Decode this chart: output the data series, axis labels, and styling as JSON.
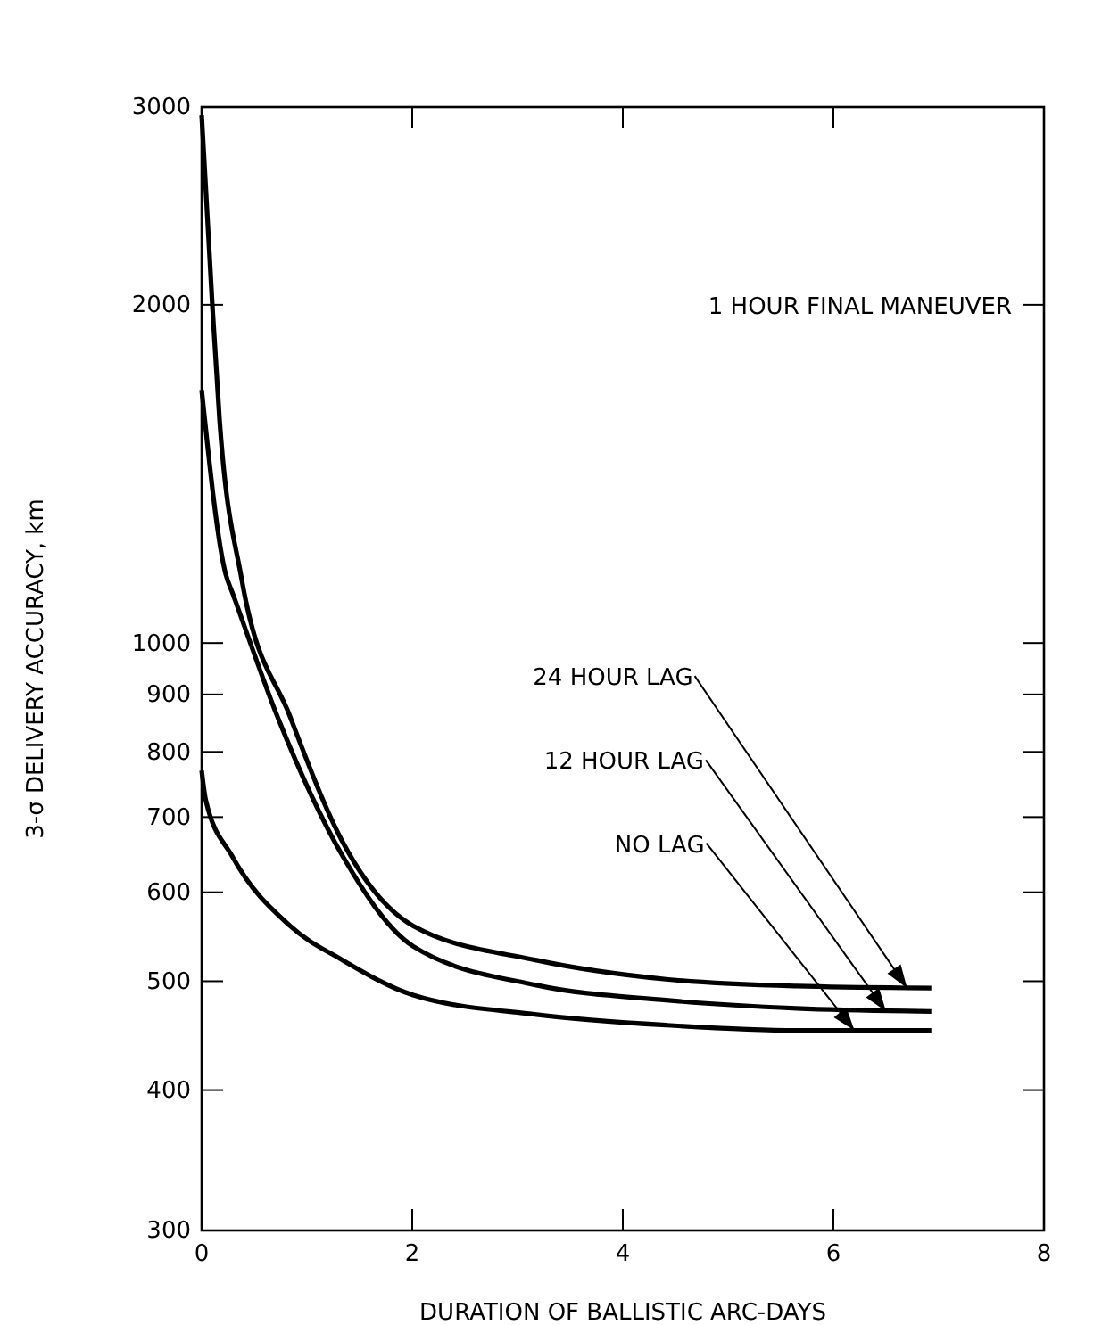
{
  "chart_data": {
    "type": "line",
    "xlabel": "DURATION OF BALLISTIC ARC-DAYS",
    "ylabel": "3-σ DELIVERY ACCURACY, km",
    "log": true,
    "xlim": [
      0,
      8
    ],
    "xticks": [
      0,
      2,
      4,
      6,
      8
    ],
    "ylim": [
      300,
      3000
    ],
    "yticks": [
      300,
      400,
      500,
      600,
      700,
      800,
      900,
      1000,
      2000,
      3000
    ],
    "line_style": "solid",
    "marker": "none",
    "series": [
      {
        "color": "#000000",
        "x": [
          0,
          0.1,
          0.17,
          0.38,
          0.84,
          1.34,
          2.01,
          3.18,
          4.41,
          5.65,
          6.93
        ],
        "values": [
          2950,
          2010,
          1580,
          1140,
          860,
          665,
          560,
          522,
          502,
          495,
          493
        ]
      },
      {
        "color": "#000000",
        "x": [
          0,
          0.23,
          0.29,
          0.72,
          1.34,
          2.01,
          3.18,
          4.41,
          5.65,
          6.93
        ],
        "values": [
          1680,
          1150,
          1110,
          860,
          646,
          537,
          496,
          481,
          473,
          470
        ]
      },
      {
        "color": "#000000",
        "x": [
          0,
          0.04,
          0.29,
          0.84,
          1.34,
          2.01,
          3.18,
          4.41,
          5.65,
          6.93
        ],
        "values": [
          770,
          724,
          646,
          560,
          522,
          486,
          467,
          457,
          452,
          452
        ]
      }
    ],
    "annotations": [
      "1 HOUR FINAL MANEUVER",
      {
        "text": "24 HOUR LAG",
        "x": 6.7,
        "y": 493
      },
      {
        "text": "12 HOUR LAG",
        "x": 6.5,
        "y": 470
      },
      {
        "text": "NO LAG",
        "x": 6.2,
        "y": 452
      }
    ]
  }
}
